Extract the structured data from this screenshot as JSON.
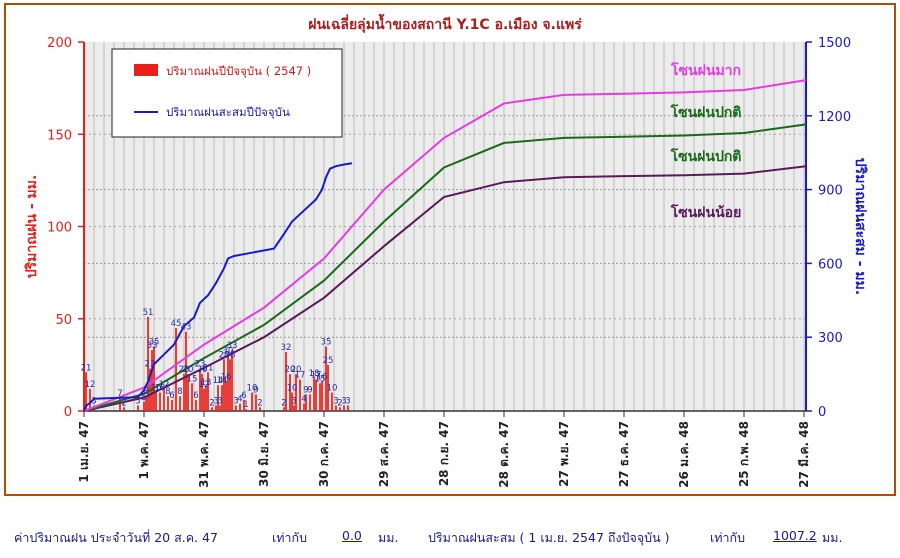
{
  "chart_data": {
    "type": "bar+line",
    "title": "ฝนเฉลี่ยลุ่มน้ำของสถานี Y.1C อ.เมือง  จ.แพร่",
    "ylabel_left": "ปริมาณฝน - มม.",
    "ylabel_right": "ปริมาณฝนสะสม - มม.",
    "ylim_left": [
      0,
      200
    ],
    "ylim_right": [
      0,
      1500
    ],
    "yticks_left": [
      "0",
      "50",
      "100",
      "150",
      "200"
    ],
    "yticks_right": [
      "0",
      "300",
      "600",
      "900",
      "1200",
      "1500"
    ],
    "x_range_days": [
      0,
      361
    ],
    "x_ticks": [
      {
        "day": 0,
        "label": "1 เม.ย. 47"
      },
      {
        "day": 30,
        "label": "1 พ.ค. 47"
      },
      {
        "day": 60,
        "label": "31 พ.ค. 47"
      },
      {
        "day": 90,
        "label": "30 มิ.ย. 47"
      },
      {
        "day": 120,
        "label": "30 ก.ค. 47"
      },
      {
        "day": 150,
        "label": "29 ส.ค. 47"
      },
      {
        "day": 180,
        "label": "28 ก.ย. 47"
      },
      {
        "day": 210,
        "label": "28 ต.ค. 47"
      },
      {
        "day": 240,
        "label": "27 พ.ย. 47"
      },
      {
        "day": 270,
        "label": "27 ธ.ค. 47"
      },
      {
        "day": 300,
        "label": "26 ม.ค. 48"
      },
      {
        "day": 330,
        "label": "25 ก.พ. 48"
      },
      {
        "day": 360,
        "label": "27 มี.ค. 48"
      }
    ],
    "legend": [
      {
        "label": "ปริมาณฝนปีปัจจุบัน ( 2547 )",
        "type": "bar",
        "color": "#e8201c"
      },
      {
        "label": "ปริมาณฝนสะสมปีปัจจุบัน",
        "type": "line",
        "color": "#1a1ac8"
      }
    ],
    "zone_labels": [
      {
        "label": "โซนฝนมาก",
        "color": "#e43ce4"
      },
      {
        "label": "โซนฝนปกติ",
        "color": "#1a6a1a"
      },
      {
        "label": "โซนฝนปกติ",
        "color": "#1a6a1a"
      },
      {
        "label": "โซนฝนน้อย",
        "color": "#5a1a5a"
      }
    ],
    "daily_rain": [
      {
        "day": 1,
        "value": 21
      },
      {
        "day": 3,
        "value": 12
      },
      {
        "day": 5,
        "value": 3
      },
      {
        "day": 18,
        "value": 7
      },
      {
        "day": 20,
        "value": 2
      },
      {
        "day": 27,
        "value": 3
      },
      {
        "day": 30,
        "value": 5
      },
      {
        "day": 31,
        "value": 8
      },
      {
        "day": 32,
        "value": 51
      },
      {
        "day": 33,
        "value": 23
      },
      {
        "day": 34,
        "value": 33
      },
      {
        "day": 35,
        "value": 35
      },
      {
        "day": 36,
        "value": 10
      },
      {
        "day": 38,
        "value": 10
      },
      {
        "day": 40,
        "value": 12
      },
      {
        "day": 42,
        "value": 8
      },
      {
        "day": 44,
        "value": 6
      },
      {
        "day": 46,
        "value": 45
      },
      {
        "day": 48,
        "value": 8
      },
      {
        "day": 50,
        "value": 20
      },
      {
        "day": 51,
        "value": 43
      },
      {
        "day": 52,
        "value": 20
      },
      {
        "day": 54,
        "value": 15
      },
      {
        "day": 56,
        "value": 6
      },
      {
        "day": 58,
        "value": 23
      },
      {
        "day": 59,
        "value": 20
      },
      {
        "day": 60,
        "value": 12
      },
      {
        "day": 61,
        "value": 13
      },
      {
        "day": 62,
        "value": 21
      },
      {
        "day": 64,
        "value": 2
      },
      {
        "day": 66,
        "value": 3
      },
      {
        "day": 67,
        "value": 14
      },
      {
        "day": 68,
        "value": 3
      },
      {
        "day": 69,
        "value": 14
      },
      {
        "day": 70,
        "value": 28
      },
      {
        "day": 71,
        "value": 16
      },
      {
        "day": 72,
        "value": 30
      },
      {
        "day": 73,
        "value": 28
      },
      {
        "day": 74,
        "value": 33
      },
      {
        "day": 76,
        "value": 3
      },
      {
        "day": 78,
        "value": 4
      },
      {
        "day": 80,
        "value": 6
      },
      {
        "day": 81,
        "value": 1
      },
      {
        "day": 84,
        "value": 10
      },
      {
        "day": 86,
        "value": 9
      },
      {
        "day": 88,
        "value": 2
      },
      {
        "day": 100,
        "value": 2
      },
      {
        "day": 101,
        "value": 32
      },
      {
        "day": 103,
        "value": 20
      },
      {
        "day": 104,
        "value": 10
      },
      {
        "day": 105,
        "value": 3
      },
      {
        "day": 106,
        "value": 20
      },
      {
        "day": 108,
        "value": 17
      },
      {
        "day": 110,
        "value": 4
      },
      {
        "day": 111,
        "value": 9
      },
      {
        "day": 113,
        "value": 9
      },
      {
        "day": 115,
        "value": 18
      },
      {
        "day": 116,
        "value": 17
      },
      {
        "day": 118,
        "value": 15
      },
      {
        "day": 119,
        "value": 16
      },
      {
        "day": 121,
        "value": 35
      },
      {
        "day": 122,
        "value": 25
      },
      {
        "day": 124,
        "value": 10
      },
      {
        "day": 126,
        "value": 3
      },
      {
        "day": 128,
        "value": 2
      },
      {
        "day": 130,
        "value": 3
      },
      {
        "day": 132,
        "value": 3
      }
    ],
    "cumulative_current": [
      {
        "day": 0,
        "value": 0
      },
      {
        "day": 1,
        "value": 21
      },
      {
        "day": 3,
        "value": 33
      },
      {
        "day": 5,
        "value": 50
      },
      {
        "day": 15,
        "value": 53
      },
      {
        "day": 27,
        "value": 56
      },
      {
        "day": 30,
        "value": 85
      },
      {
        "day": 32,
        "value": 120
      },
      {
        "day": 35,
        "value": 190
      },
      {
        "day": 40,
        "value": 230
      },
      {
        "day": 45,
        "value": 270
      },
      {
        "day": 50,
        "value": 345
      },
      {
        "day": 55,
        "value": 380
      },
      {
        "day": 58,
        "value": 440
      },
      {
        "day": 62,
        "value": 470
      },
      {
        "day": 66,
        "value": 520
      },
      {
        "day": 70,
        "value": 580
      },
      {
        "day": 72,
        "value": 620
      },
      {
        "day": 75,
        "value": 630
      },
      {
        "day": 85,
        "value": 645
      },
      {
        "day": 95,
        "value": 660
      },
      {
        "day": 100,
        "value": 720
      },
      {
        "day": 104,
        "value": 770
      },
      {
        "day": 108,
        "value": 800
      },
      {
        "day": 112,
        "value": 830
      },
      {
        "day": 116,
        "value": 860
      },
      {
        "day": 119,
        "value": 900
      },
      {
        "day": 121,
        "value": 950
      },
      {
        "day": 123,
        "value": 985
      },
      {
        "day": 126,
        "value": 995
      },
      {
        "day": 130,
        "value": 1002
      },
      {
        "day": 134,
        "value": 1007
      }
    ],
    "zone_high": [
      {
        "day": 0,
        "value": 0
      },
      {
        "day": 30,
        "value": 95
      },
      {
        "day": 60,
        "value": 270
      },
      {
        "day": 90,
        "value": 420
      },
      {
        "day": 120,
        "value": 620
      },
      {
        "day": 150,
        "value": 900
      },
      {
        "day": 180,
        "value": 1110
      },
      {
        "day": 210,
        "value": 1250
      },
      {
        "day": 240,
        "value": 1285
      },
      {
        "day": 270,
        "value": 1290
      },
      {
        "day": 300,
        "value": 1295
      },
      {
        "day": 330,
        "value": 1305
      },
      {
        "day": 361,
        "value": 1345
      }
    ],
    "zone_normal": [
      {
        "day": 0,
        "value": 0
      },
      {
        "day": 30,
        "value": 70
      },
      {
        "day": 60,
        "value": 215
      },
      {
        "day": 90,
        "value": 350
      },
      {
        "day": 120,
        "value": 530
      },
      {
        "day": 150,
        "value": 770
      },
      {
        "day": 180,
        "value": 990
      },
      {
        "day": 210,
        "value": 1090
      },
      {
        "day": 240,
        "value": 1110
      },
      {
        "day": 270,
        "value": 1115
      },
      {
        "day": 300,
        "value": 1120
      },
      {
        "day": 330,
        "value": 1130
      },
      {
        "day": 361,
        "value": 1165
      }
    ],
    "zone_low": [
      {
        "day": 0,
        "value": 0
      },
      {
        "day": 30,
        "value": 55
      },
      {
        "day": 60,
        "value": 175
      },
      {
        "day": 90,
        "value": 300
      },
      {
        "day": 120,
        "value": 460
      },
      {
        "day": 150,
        "value": 670
      },
      {
        "day": 180,
        "value": 870
      },
      {
        "day": 210,
        "value": 930
      },
      {
        "day": 240,
        "value": 950
      },
      {
        "day": 270,
        "value": 955
      },
      {
        "day": 300,
        "value": 958
      },
      {
        "day": 330,
        "value": 965
      },
      {
        "day": 361,
        "value": 995
      }
    ]
  },
  "footer": {
    "daily_label": "ค่าปริมาณฝน  ประจำวันที่ 20 ส.ค. 47",
    "equals_1": "เท่ากับ",
    "daily_value": "0.0",
    "unit_1": "มม.",
    "cumulative_label": "ปริมาณฝนสะสม ( 1 เม.ย. 2547 ถึงปัจจุบัน )",
    "equals_2": "เท่ากับ",
    "cumulative_value": "1007.2",
    "unit_2": "มม."
  },
  "colors": {
    "frame": "#b24d00",
    "plot_bg": "#ececec",
    "grid": "#bdbdbd",
    "left_axis": "#e8201c",
    "right_axis": "#1a1ac8",
    "high": "#e43ce4",
    "normal": "#1a6a1a",
    "low": "#5a1a5a"
  }
}
